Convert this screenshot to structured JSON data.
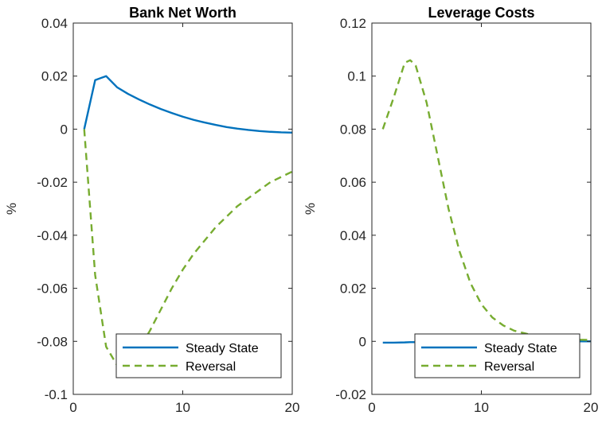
{
  "chart_data": [
    {
      "type": "line",
      "title": "Bank Net Worth",
      "xlabel": "",
      "ylabel": "%",
      "xlim": [
        0,
        20
      ],
      "ylim": [
        -0.1,
        0.04
      ],
      "xticks": [
        0,
        10,
        20
      ],
      "xtick_labels": [
        "0",
        "10",
        "20"
      ],
      "yticks": [
        -0.1,
        -0.08,
        -0.06,
        -0.04,
        -0.02,
        0,
        0.02,
        0.04
      ],
      "ytick_labels": [
        "-0.1",
        "-0.08",
        "-0.06",
        "-0.04",
        "-0.02",
        "0",
        "0.02",
        "0.04"
      ],
      "grid": false,
      "legend_position": "bottom-right",
      "x": [
        1,
        2,
        3,
        4,
        5,
        6,
        7,
        8,
        9,
        10,
        11,
        12,
        13,
        14,
        15,
        16,
        17,
        18,
        19,
        20
      ],
      "series": [
        {
          "name": "Steady State",
          "color": "#0072BD",
          "style": "solid",
          "values": [
            0,
            0.0185,
            0.02,
            0.0158,
            0.0133,
            0.0112,
            0.0093,
            0.0076,
            0.0061,
            0.0047,
            0.0035,
            0.0025,
            0.0016,
            0.0008,
            0.0002,
            -0.0003,
            -0.0007,
            -0.001,
            -0.0012,
            -0.0013
          ]
        },
        {
          "name": "Reversal",
          "color": "#77AC30",
          "style": "dashed",
          "values": [
            0,
            -0.055,
            -0.082,
            -0.089,
            -0.088,
            -0.083,
            -0.076,
            -0.068,
            -0.06,
            -0.053,
            -0.047,
            -0.042,
            -0.037,
            -0.033,
            -0.029,
            -0.026,
            -0.023,
            -0.02,
            -0.018,
            -0.016
          ]
        }
      ]
    },
    {
      "type": "line",
      "title": "Leverage Costs",
      "xlabel": "",
      "ylabel": "%",
      "xlim": [
        0,
        20
      ],
      "ylim": [
        -0.02,
        0.12
      ],
      "xticks": [
        0,
        10,
        20
      ],
      "xtick_labels": [
        "0",
        "10",
        "20"
      ],
      "yticks": [
        -0.02,
        0,
        0.02,
        0.04,
        0.06,
        0.08,
        0.1,
        0.12
      ],
      "ytick_labels": [
        "-0.02",
        "0",
        "0.02",
        "0.04",
        "0.06",
        "0.08",
        "0.1",
        "0.12"
      ],
      "grid": false,
      "legend_position": "bottom-right",
      "x": [
        1,
        2,
        3,
        3.5,
        4,
        5,
        6,
        7,
        8,
        9,
        10,
        11,
        12,
        13,
        14,
        15,
        16,
        17,
        18,
        19,
        20
      ],
      "series": [
        {
          "name": "Steady State",
          "color": "#0072BD",
          "style": "solid",
          "values": [
            -0.0005,
            -0.0005,
            -0.0004,
            -0.0003,
            -0.0003,
            -0.0002,
            -0.0001,
            0,
            0,
            0,
            0,
            0,
            0,
            0,
            0,
            0,
            0,
            0,
            0,
            0,
            0
          ]
        },
        {
          "name": "Reversal",
          "color": "#77AC30",
          "style": "dashed",
          "values": [
            0.08,
            0.092,
            0.105,
            0.106,
            0.104,
            0.09,
            0.07,
            0.05,
            0.034,
            0.022,
            0.014,
            0.009,
            0.006,
            0.004,
            0.003,
            0.002,
            0.0015,
            0.001,
            0.0008,
            0.0006,
            0.0005
          ]
        }
      ]
    }
  ]
}
